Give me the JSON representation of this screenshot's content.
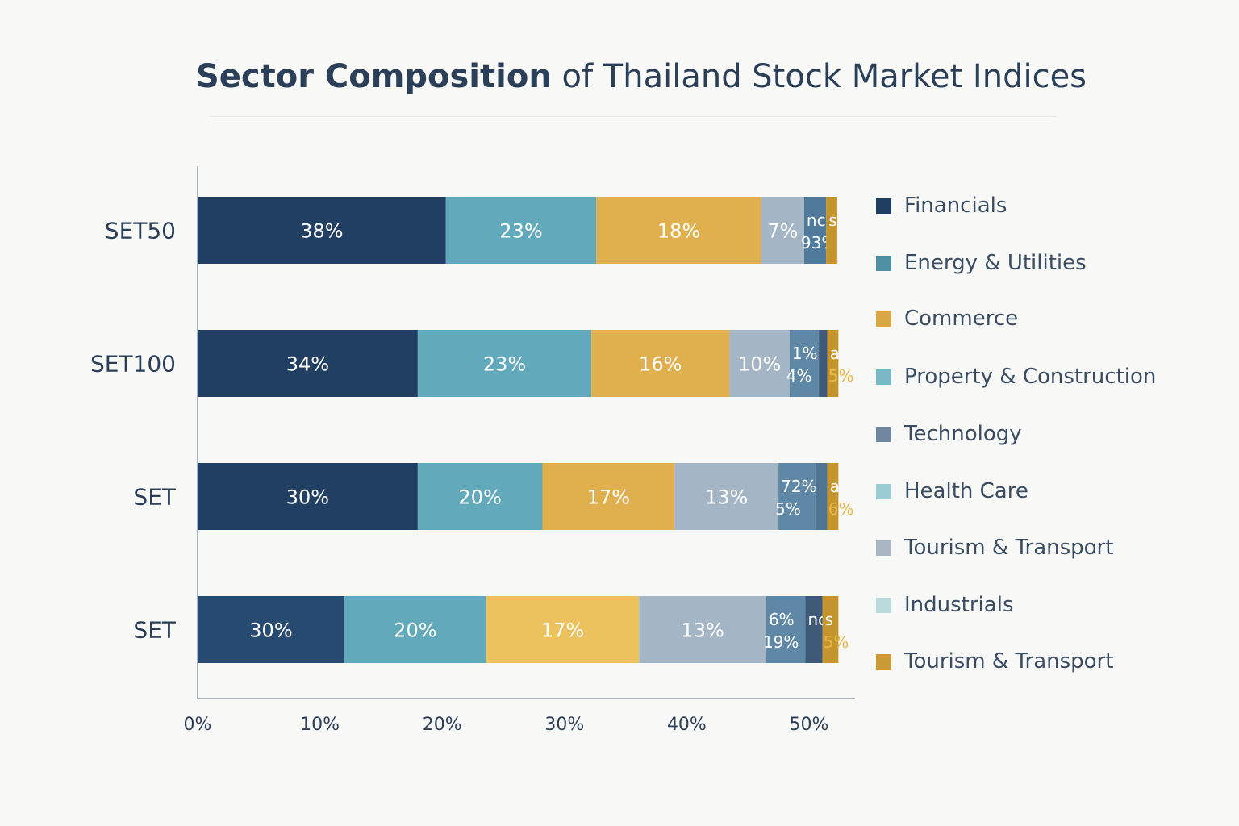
{
  "title": {
    "bold": "Sector Composition",
    "rest": "of Thailand Stock Market Indices"
  },
  "chart_data": {
    "type": "bar",
    "orientation": "horizontal",
    "stacked": true,
    "title": "Sector Composition of Thailand Stock Market Indices",
    "xlabel": "",
    "ylabel": "",
    "xlim": [
      0,
      54
    ],
    "xticks": [
      0,
      10,
      20,
      30,
      40,
      50
    ],
    "xtick_labels": [
      "0%",
      "10%",
      "20%",
      "30%",
      "40%",
      "50%"
    ],
    "legend_position": "right",
    "categories": [
      "SET50",
      "SET100",
      "SET",
      "SET"
    ],
    "bars": [
      {
        "category": "SET50",
        "segments": [
          {
            "value": 20.3,
            "color": "#203f62",
            "label": "38%"
          },
          {
            "value": 12.3,
            "color": "#62aabb",
            "label": "23%"
          },
          {
            "value": 13.5,
            "color": "#e0b04e",
            "label": "18%"
          },
          {
            "value": 3.5,
            "color": "#a4b5c5",
            "label": "7%"
          },
          {
            "value": 1.8,
            "color": "#4f7a9c",
            "label": "nc",
            "label2": "93%"
          },
          {
            "value": 0.9,
            "color": "#c4952c",
            "label": "s",
            "label2": ""
          }
        ]
      },
      {
        "category": "SET100",
        "segments": [
          {
            "value": 18.0,
            "color": "#203f62",
            "label": "34%"
          },
          {
            "value": 14.2,
            "color": "#62aabb",
            "label": "23%"
          },
          {
            "value": 11.3,
            "color": "#e0b04e",
            "label": "16%"
          },
          {
            "value": 4.9,
            "color": "#a4b5c5",
            "label": "10%"
          },
          {
            "value": 2.4,
            "color": "#5f88a6",
            "label": "1%",
            "label2": "4%"
          },
          {
            "value": 0.7,
            "color": "#3e5a78",
            "label": "",
            "label2": ""
          },
          {
            "value": 0.9,
            "color": "#c4952c",
            "label": "a",
            "label2": "5%"
          }
        ]
      },
      {
        "category": "SET",
        "segments": [
          {
            "value": 18.0,
            "color": "#203f62",
            "label": "30%"
          },
          {
            "value": 10.2,
            "color": "#62aabb",
            "label": "20%"
          },
          {
            "value": 10.8,
            "color": "#e0b04e",
            "label": "17%"
          },
          {
            "value": 8.5,
            "color": "#a4b5c5",
            "label": "13%"
          },
          {
            "value": 3.0,
            "color": "#5f88a6",
            "label": "72%",
            "label2": "5%"
          },
          {
            "value": 1.0,
            "color": "#4f7592",
            "label": "",
            "label2": ""
          },
          {
            "value": 0.9,
            "color": "#c4952c",
            "label": "a",
            "label2": "6%"
          }
        ]
      },
      {
        "category": "SET",
        "segments": [
          {
            "value": 12.0,
            "color": "#264a70",
            "label": "30%"
          },
          {
            "value": 11.6,
            "color": "#62aabb",
            "label": "20%"
          },
          {
            "value": 12.5,
            "color": "#ecc25e",
            "label": "17%"
          },
          {
            "value": 10.4,
            "color": "#a4b5c5",
            "label": "13%"
          },
          {
            "value": 3.2,
            "color": "#5f88a6",
            "label": "6%",
            "label2": "19%"
          },
          {
            "value": 1.4,
            "color": "#3e5a78",
            "label": "nc",
            "label2": ""
          },
          {
            "value": 1.3,
            "color": "#c4952c",
            "label": "s",
            "label2": "5%"
          }
        ]
      }
    ],
    "legend": [
      {
        "label": "Financials",
        "color": "#1f3d5e"
      },
      {
        "label": "Energy & Utilities",
        "color": "#4f8fa3"
      },
      {
        "label": "Commerce",
        "color": "#d9a845"
      },
      {
        "label": "Property & Construction",
        "color": "#7bb8c6"
      },
      {
        "label": "Technology",
        "color": "#6f88a0"
      },
      {
        "label": "Health Care",
        "color": "#9bcbd3"
      },
      {
        "label": "Tourism & Transport",
        "color": "#a9b6c4"
      },
      {
        "label": "Industrials",
        "color": "#b9dbdc"
      },
      {
        "label": "Tourism & Transport",
        "color": "#c99a35"
      }
    ]
  }
}
